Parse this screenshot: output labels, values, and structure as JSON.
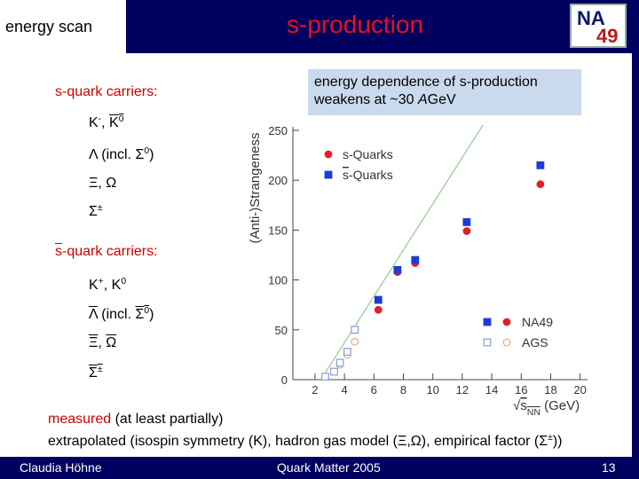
{
  "slide": {
    "header_left": "energy scan",
    "title": "s-production",
    "logo": [
      "NA",
      "49"
    ],
    "groups": [
      {
        "heading": [
          {
            "t": "s-quark carriers:"
          }
        ],
        "items": [
          [
            {
              "t": "K"
            },
            {
              "t": "-",
              "sup": true
            },
            {
              "t": ", "
            },
            {
              "t": "K",
              "bar": true
            },
            {
              "t": "0",
              "sup": true,
              "bar": true
            }
          ],
          [
            {
              "t": "Λ (incl. Σ"
            },
            {
              "t": "0",
              "sup": true
            },
            {
              "t": ")"
            }
          ],
          [
            {
              "t": "Ξ, Ω"
            }
          ],
          [
            {
              "t": "Σ"
            },
            {
              "t": "±",
              "sup": true
            }
          ]
        ]
      },
      {
        "heading": [
          {
            "t": "s",
            "bar": true
          },
          {
            "t": "-quark carriers:"
          }
        ],
        "items": [
          [
            {
              "t": "K"
            },
            {
              "t": "+",
              "sup": true
            },
            {
              "t": ", "
            },
            {
              "t": "K"
            },
            {
              "t": "0",
              "sup": true
            }
          ],
          [
            {
              "t": "Λ",
              "bar": true
            },
            {
              "t": " (incl. "
            },
            {
              "t": "Σ",
              "bar": true
            },
            {
              "t": "0",
              "sup": true,
              "bar": true
            },
            {
              "t": ")"
            }
          ],
          [
            {
              "t": "Ξ",
              "bar": true
            },
            {
              "t": ", "
            },
            {
              "t": "Ω",
              "bar": true
            }
          ],
          [
            {
              "t": "Σ",
              "bar": true
            },
            {
              "t": "±",
              "sup": true,
              "bar": true
            }
          ]
        ]
      }
    ],
    "callout": [
      [
        {
          "t": "energy dependence of s-production"
        }
      ],
      [
        {
          "t": "weakens at ~30 "
        },
        {
          "t": "A",
          "italic": true
        },
        {
          "t": "GeV"
        }
      ]
    ],
    "notes": [
      [
        {
          "t": "measured",
          "color": "#cc0000"
        },
        {
          "t": " (at least partially)"
        }
      ],
      [
        {
          "t": "extrapolated (isospin symmetry (K), hadron gas model (Ξ,Ω), empirical factor (Σ"
        },
        {
          "t": "±",
          "sup": true
        },
        {
          "t": "))"
        }
      ]
    ],
    "footer": {
      "author": "Claudia Höhne",
      "event": "Quark Matter 2005",
      "page": "13"
    }
  },
  "chart_data": {
    "type": "scatter",
    "ylabel": "(Anti-)Strangeness",
    "xlabel": [
      {
        "t": "√"
      },
      {
        "t": "s",
        "bar": true
      },
      {
        "t": "NN",
        "sub": true,
        "bar": true
      },
      {
        "t": " (GeV)"
      }
    ],
    "xlim": [
      0.5,
      20.5
    ],
    "ylim": [
      0,
      250
    ],
    "xticks": [
      2,
      4,
      6,
      8,
      10,
      12,
      14,
      16,
      18,
      20
    ],
    "yticks": [
      0,
      50,
      100,
      150,
      200,
      250
    ],
    "quark_legend": [
      {
        "name": [
          {
            "t": "s-Quarks"
          }
        ],
        "color": "#e0202a",
        "marker": "circle"
      },
      {
        "name": [
          {
            "t": "s",
            "bar": true
          },
          {
            "t": "-Quarks"
          }
        ],
        "color": "#1a3cd8",
        "marker": "square"
      }
    ],
    "experiment_legend": [
      {
        "name": "NA49",
        "filled": true
      },
      {
        "name": "AGS",
        "filled": false
      }
    ],
    "series": [
      {
        "quark": 0,
        "experiment": 0,
        "x": [
          6.3,
          7.6,
          8.8,
          12.3,
          17.3
        ],
        "values": [
          70,
          108,
          117,
          149,
          196
        ]
      },
      {
        "quark": 1,
        "experiment": 0,
        "x": [
          6.3,
          7.6,
          8.8,
          12.3,
          17.3
        ],
        "values": [
          80,
          110,
          120,
          158,
          215
        ]
      },
      {
        "quark": 0,
        "experiment": 1,
        "x": [
          3.7,
          4.2,
          4.7
        ],
        "values": [
          15,
          25,
          38
        ]
      },
      {
        "quark": 1,
        "experiment": 1,
        "x": [
          2.7,
          3.3,
          3.7,
          4.2,
          4.7
        ],
        "values": [
          3,
          8,
          17,
          28,
          50
        ]
      }
    ],
    "lines": [
      {
        "color": "#7cc47c",
        "x": [
          2.4,
          13.6
        ],
        "values": [
          0,
          260
        ]
      }
    ]
  }
}
